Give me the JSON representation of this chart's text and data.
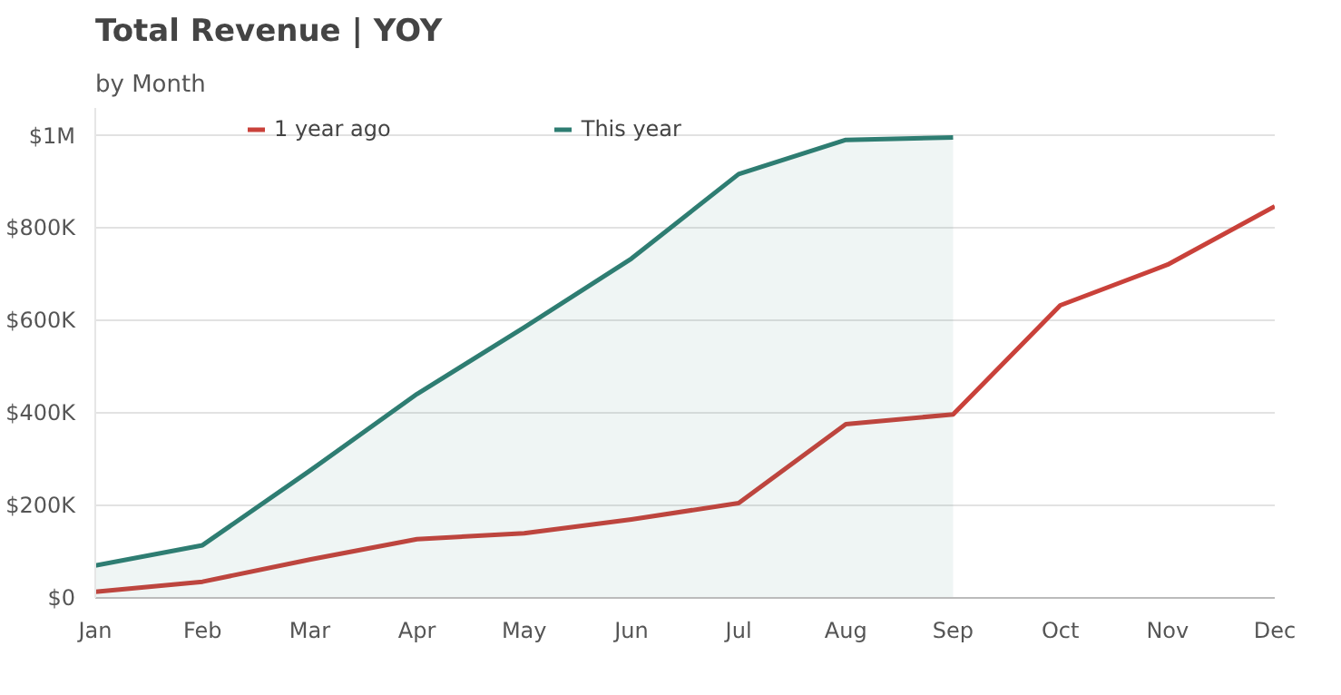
{
  "chart_data": {
    "type": "line",
    "title": "Total Revenue | YOY",
    "subtitle": "by Month",
    "categories": [
      "Jan",
      "Feb",
      "Mar",
      "Apr",
      "May",
      "Jun",
      "Jul",
      "Aug",
      "Sep",
      "Oct",
      "Nov",
      "Dec"
    ],
    "series": [
      {
        "name": "1 year ago",
        "color": "#c9413a",
        "values": [
          13000,
          35000,
          83000,
          127000,
          140000,
          170000,
          205000,
          376000,
          397000,
          633000,
          721000,
          847000
        ]
      },
      {
        "name": "This year",
        "type": "area",
        "color": "#2e7d72",
        "values": [
          70000,
          114000,
          275000,
          441000,
          585000,
          734000,
          917000,
          991000,
          996000,
          null,
          null,
          null
        ]
      }
    ],
    "ylim": [
      0,
      1060000
    ],
    "yticks": [
      {
        "value": 0,
        "label": "$0"
      },
      {
        "value": 200000,
        "label": "$200K"
      },
      {
        "value": 400000,
        "label": "$400K"
      },
      {
        "value": 600000,
        "label": "$600K"
      },
      {
        "value": 800000,
        "label": "$800K"
      },
      {
        "value": 1000000,
        "label": "$1M"
      }
    ],
    "grid": "y",
    "legend": "top",
    "marker": "none",
    "line_style": "solid"
  }
}
